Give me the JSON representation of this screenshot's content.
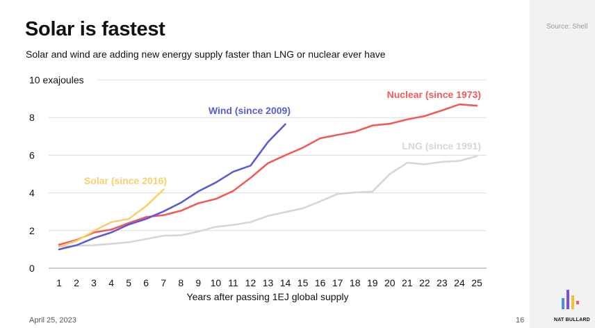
{
  "slide": {
    "title": "Solar is fastest",
    "subtitle": "Solar and wind are adding new energy supply faster than LNG or nuclear ever have",
    "source": "Source: Shell",
    "date": "April 25, 2023",
    "page_number": "16",
    "brand": "NAT BULLARD"
  },
  "colors": {
    "solar": "#f8d06b",
    "wind": "#5b5bd6",
    "nuclear": "#ef5b5b",
    "lng": "#d6d6d6",
    "grid": "#d9d9d9",
    "sidebar": "#f2f2f2"
  },
  "chart_data": {
    "type": "line",
    "title": "Solar is fastest",
    "subtitle": "Solar and wind are adding new energy supply faster than LNG or nuclear ever have",
    "xlabel": "Years after passing 1EJ global supply",
    "ylabel": "",
    "ylim": [
      0,
      10
    ],
    "xlim": [
      1,
      25
    ],
    "x_ticks": [
      1,
      2,
      3,
      4,
      5,
      6,
      7,
      8,
      9,
      10,
      11,
      12,
      13,
      14,
      15,
      16,
      17,
      18,
      19,
      20,
      21,
      22,
      23,
      24,
      25
    ],
    "y_ticks": [
      0,
      2,
      4,
      6,
      8,
      10
    ],
    "y_tick_labels": [
      "0",
      "2",
      "4",
      "6",
      "8",
      "10 exajoules"
    ],
    "grid": "horizontal",
    "legend": "inline labels",
    "series": [
      {
        "key": "lng",
        "name": "LNG (since 1991)",
        "x": [
          1,
          2,
          3,
          4,
          5,
          6,
          7,
          8,
          9,
          10,
          11,
          12,
          13,
          14,
          15,
          16,
          17,
          18,
          19,
          20,
          21,
          22,
          23,
          24,
          25
        ],
        "values": [
          1.15,
          1.2,
          1.22,
          1.3,
          1.38,
          1.55,
          1.73,
          1.75,
          1.95,
          2.2,
          2.3,
          2.45,
          2.78,
          2.98,
          3.18,
          3.55,
          3.95,
          4.02,
          4.07,
          5.0,
          5.6,
          5.52,
          5.65,
          5.7,
          5.95
        ]
      },
      {
        "key": "nuclear",
        "name": "Nuclear (since 1973)",
        "x": [
          1,
          2,
          3,
          4,
          5,
          6,
          7,
          8,
          9,
          10,
          11,
          12,
          13,
          14,
          15,
          16,
          17,
          18,
          19,
          20,
          21,
          22,
          23,
          24,
          25
        ],
        "values": [
          1.25,
          1.5,
          1.9,
          2.05,
          2.4,
          2.72,
          2.82,
          3.05,
          3.45,
          3.68,
          4.1,
          4.8,
          5.58,
          6.0,
          6.4,
          6.9,
          7.08,
          7.25,
          7.58,
          7.67,
          7.9,
          8.08,
          8.38,
          8.7,
          8.63
        ]
      },
      {
        "key": "wind",
        "name": "Wind (since 2009)",
        "x": [
          1,
          2,
          3,
          4,
          5,
          6,
          7,
          8,
          9,
          10,
          11,
          12,
          13,
          14
        ],
        "values": [
          1.0,
          1.22,
          1.6,
          1.9,
          2.32,
          2.62,
          3.02,
          3.48,
          4.08,
          4.55,
          5.12,
          5.45,
          6.7,
          7.65
        ]
      },
      {
        "key": "solar",
        "name": "Solar (since 2016)",
        "x": [
          1,
          2,
          3,
          4,
          5,
          6,
          7
        ],
        "values": [
          1.15,
          1.45,
          1.98,
          2.45,
          2.62,
          3.3,
          4.18
        ]
      }
    ]
  }
}
